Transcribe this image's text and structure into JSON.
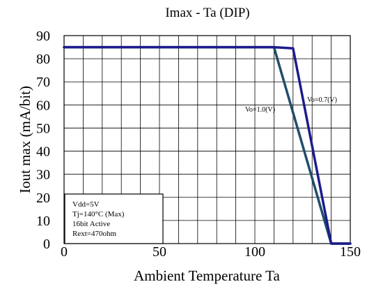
{
  "chart_data": {
    "type": "line",
    "title": "Imax - Ta  (DIP)",
    "xlabel": "Ambient Temperature Ta",
    "ylabel": "Iout max (mA/bit)",
    "xlim": [
      0,
      150
    ],
    "ylim": [
      0,
      90
    ],
    "xticks": [
      "0",
      "50",
      "100",
      "150"
    ],
    "yticks": [
      "0",
      "10",
      "20",
      "30",
      "40",
      "50",
      "60",
      "70",
      "80",
      "90"
    ],
    "grid": true,
    "series": [
      {
        "name": "Vo=1.0(V)",
        "color": "#1f4e6b",
        "points": [
          [
            0,
            85
          ],
          [
            110,
            85
          ],
          [
            140,
            0
          ],
          [
            150,
            0
          ]
        ]
      },
      {
        "name": "Vo=0.7(V)",
        "color": "#1c1c8c",
        "points": [
          [
            0,
            85
          ],
          [
            110,
            85
          ],
          [
            120,
            84.5
          ],
          [
            140,
            0
          ],
          [
            150,
            0
          ]
        ]
      }
    ],
    "annotation_lines": [
      "Vdd=5V",
      "Tj=140°C (Max)",
      "16bit Active",
      "Rext=470ohm"
    ]
  }
}
